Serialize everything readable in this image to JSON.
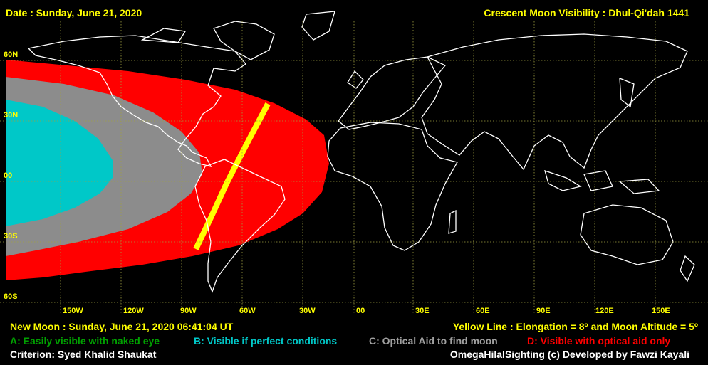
{
  "header": {
    "date": "Date : Sunday, June 21, 2020",
    "title": "Crescent Moon Visibility : Dhul-Qi'dah  1441"
  },
  "lat_labels": [
    "60N",
    "30N",
    "00",
    "30S",
    "60S"
  ],
  "lon_labels": [
    "150W",
    "120W",
    "90W",
    "60W",
    "30W",
    "00",
    "30E",
    "60E",
    "90E",
    "120E",
    "150E"
  ],
  "footer": {
    "new_moon": "New Moon : Sunday, June 21, 2020  06:41:04  UT",
    "yellow_line": "Yellow Line : Elongation = 8º  and Moon Altitude = 5º",
    "legend_a": "A: Easily visible with naked eye",
    "legend_b": "B: Visible if perfect conditions",
    "legend_c": "C: Optical Aid to find moon",
    "legend_d": "D: Visible with optical aid only",
    "criterion": "Criterion: Syed Khalid Shaukat",
    "credit": "OmegaHilalSighting  (c)  Developed by Fawzi Kayali"
  },
  "colors": {
    "zone_a": "#00a000",
    "zone_b": "#00c8c8",
    "zone_c": "#8c8c8c",
    "zone_d": "#ff0000",
    "yellow_line": "#ffff00",
    "grid": "#a0a040",
    "coast": "#ffffff",
    "text": "#ffff00"
  }
}
